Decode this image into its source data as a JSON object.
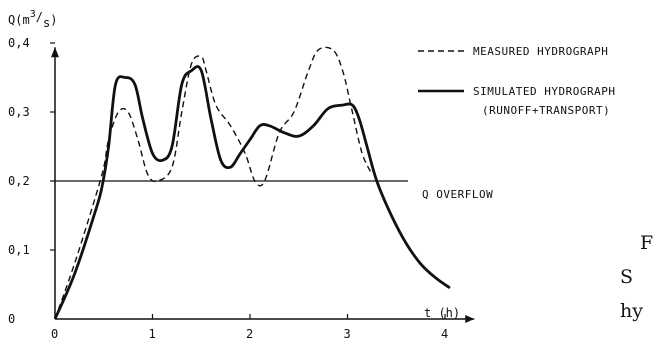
{
  "chart_data": {
    "type": "line",
    "title": "",
    "xlabel": "t (h)",
    "ylabel": "Q(m³/s)",
    "ylabel_parts": {
      "main": "Q(m",
      "sup": "3",
      "slash": "/",
      "sub": "s",
      "close": ")"
    },
    "xlim": [
      0,
      4.3
    ],
    "ylim": [
      0,
      0.42
    ],
    "x_ticks": [
      {
        "value": 0,
        "label": "0"
      },
      {
        "value": 1,
        "label": "1"
      },
      {
        "value": 2,
        "label": "2"
      },
      {
        "value": 3,
        "label": "3"
      },
      {
        "value": 4,
        "label": "4"
      }
    ],
    "y_ticks": [
      {
        "value": 0,
        "label": "0"
      },
      {
        "value": 0.1,
        "label": "0,1"
      },
      {
        "value": 0.2,
        "label": "0,2"
      },
      {
        "value": 0.3,
        "label": "0,3"
      },
      {
        "value": 0.4,
        "label": "0,4"
      }
    ],
    "grid": false,
    "legend_position": "right",
    "series": [
      {
        "name": "MEASURED HYDROGRAPH",
        "style": "dashed",
        "x": [
          0,
          0.2,
          0.4,
          0.5,
          0.55,
          0.65,
          0.75,
          0.85,
          0.95,
          1.05,
          1.2,
          1.3,
          1.4,
          1.5,
          1.55,
          1.65,
          1.8,
          1.95,
          2.05,
          2.15,
          2.3,
          2.45,
          2.6,
          2.7,
          2.85,
          2.95,
          3.05,
          3.15,
          3.25
        ],
        "y": [
          0,
          0.08,
          0.17,
          0.22,
          0.26,
          0.3,
          0.3,
          0.26,
          0.21,
          0.2,
          0.22,
          0.3,
          0.37,
          0.38,
          0.36,
          0.31,
          0.28,
          0.24,
          0.2,
          0.2,
          0.27,
          0.3,
          0.36,
          0.39,
          0.39,
          0.36,
          0.3,
          0.24,
          0.21
        ]
      },
      {
        "name": "SIMULATED HYDROGRAPH",
        "legend_note": "(RUNOFF+TRANSPORT)",
        "style": "solid",
        "x": [
          0,
          0.2,
          0.4,
          0.48,
          0.55,
          0.62,
          0.72,
          0.82,
          0.9,
          1.0,
          1.1,
          1.2,
          1.3,
          1.4,
          1.5,
          1.6,
          1.7,
          1.8,
          1.9,
          2.0,
          2.1,
          2.2,
          2.35,
          2.5,
          2.65,
          2.8,
          2.95,
          3.05,
          3.12,
          3.2,
          3.3,
          3.45,
          3.6,
          3.75,
          3.9,
          4.05
        ],
        "y": [
          0,
          0.065,
          0.15,
          0.19,
          0.25,
          0.34,
          0.35,
          0.34,
          0.29,
          0.24,
          0.23,
          0.25,
          0.34,
          0.36,
          0.36,
          0.29,
          0.23,
          0.22,
          0.24,
          0.26,
          0.28,
          0.28,
          0.27,
          0.265,
          0.28,
          0.305,
          0.31,
          0.31,
          0.29,
          0.25,
          0.2,
          0.15,
          0.11,
          0.08,
          0.06,
          0.045
        ]
      }
    ],
    "annotations": [
      {
        "label": "Q OVERFLOW",
        "y": 0.2,
        "kind": "horizontal-line"
      }
    ],
    "side_text": [
      "F",
      "S",
      "hy"
    ]
  }
}
